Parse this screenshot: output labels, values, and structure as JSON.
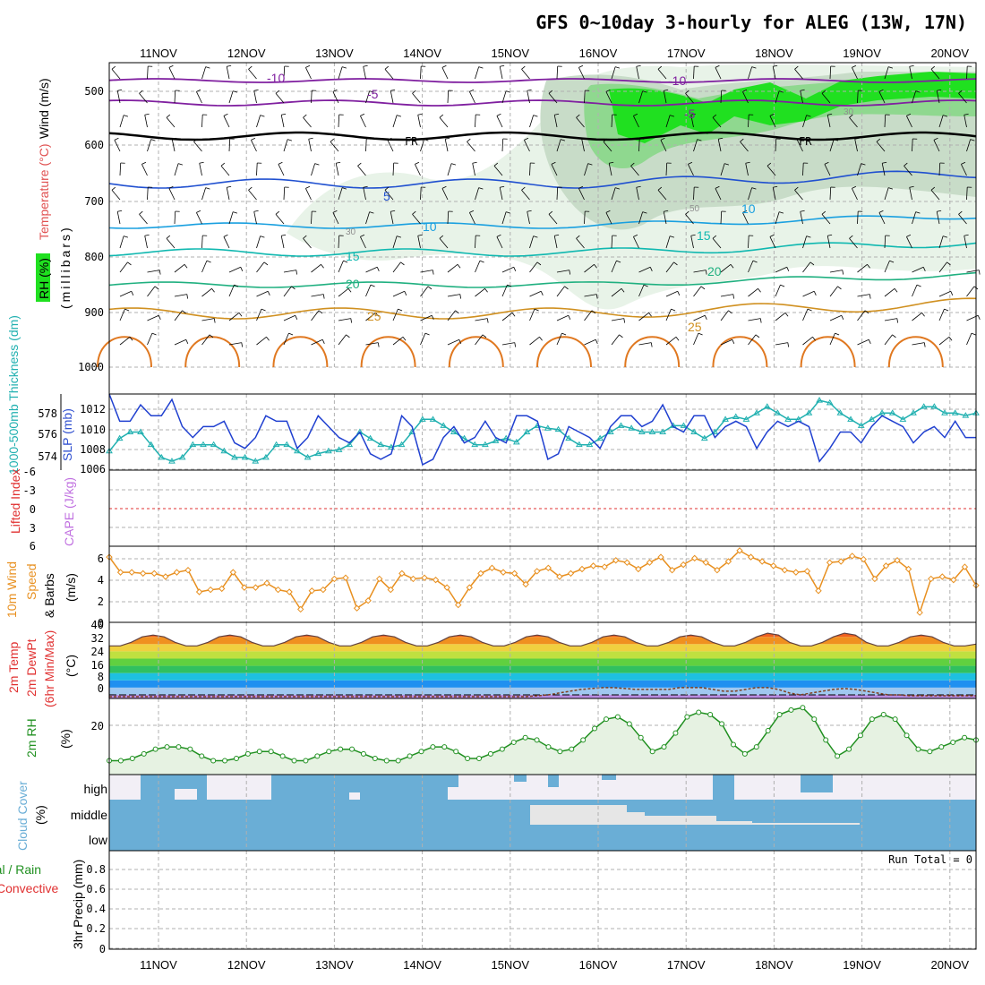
{
  "title": "GFS 0~10day 3-hourly for ALEG (13W, 17N)",
  "dates": [
    "11NOV",
    "12NOV",
    "13NOV",
    "14NOV",
    "15NOV",
    "16NOV",
    "17NOV",
    "18NOV",
    "19NOV",
    "20NOV"
  ],
  "colors": {
    "slp": "#2040d0",
    "thickness": "#20b0b0",
    "wind10": "#e89020",
    "rh2m": "#209020",
    "cloud": "#6aaed6",
    "lifted": "#e03030",
    "cape": "#c070e0",
    "rh_fill": "#00e000"
  },
  "panels": {
    "upper": {
      "label_wind": "Wind (m/s)",
      "label_temp": "Temperature (°C)",
      "label_rh": "RH (%)",
      "label_mb": "(millibars)",
      "yticks": [
        "500",
        "600",
        "700",
        "800",
        "900",
        "1000"
      ],
      "isotherm_labels": [
        "-10",
        "-5",
        "FR",
        "5",
        "10",
        "15",
        "20",
        "25"
      ],
      "rh_labels": [
        "30",
        "50",
        "30"
      ]
    },
    "slp": {
      "label_thick": "1000-500mb Thickness (dm)",
      "label_slp": "SLP (mb)",
      "left_ticks": [
        "578",
        "576",
        "574"
      ],
      "right_ticks": [
        "1012",
        "1010",
        "1008",
        "1006"
      ]
    },
    "li": {
      "label_li": "Lifted Index",
      "label_cape": "CAPE (J/kg)",
      "ticks": [
        "-6",
        "-3",
        "0",
        "3",
        "6"
      ]
    },
    "wind10": {
      "label1": "10m Wind",
      "label2": "Speed",
      "label3": "& Barbs",
      "units": "(m/s)",
      "ticks": [
        "6",
        "4",
        "2",
        "0"
      ]
    },
    "temp2m": {
      "label1": "2m Temp",
      "label2": "2m DewPt",
      "label3": "(6hr Min/Max)",
      "units": "(°C)",
      "ticks": [
        "40",
        "32",
        "24",
        "16",
        "8",
        "0"
      ]
    },
    "rh2m": {
      "label": "2m RH",
      "units": "(%)",
      "ticks": [
        "20"
      ]
    },
    "cloud": {
      "label": "Cloud Cover",
      "units": "(%)",
      "levels": [
        "high",
        "middle",
        "low"
      ]
    },
    "precip": {
      "label1": "Total / Rain",
      "label2": "Convective",
      "label3": "3hr Precip (mm)",
      "ticks": [
        "0.8",
        "0.6",
        "0.4",
        "0.2",
        "0"
      ],
      "run_total": "Run Total = 0"
    }
  },
  "chart_data": [
    {
      "type": "line",
      "name": "SLP (mb)",
      "ylim": [
        1006,
        1013
      ],
      "series": [
        {
          "name": "SLP",
          "values": [
            1013,
            1010.5,
            1010.5,
            1012,
            1011,
            1011,
            1012.5,
            1010,
            1009,
            1010,
            1010,
            1010.5,
            1008.5,
            1008,
            1009,
            1011,
            1010.5,
            1010.5,
            1008,
            1009,
            1011,
            1010,
            1009,
            1008.5,
            1009.5,
            1007.5,
            1007,
            1007.5,
            1011,
            1010,
            1006.5,
            1007,
            1009,
            1010,
            1008.5,
            1009,
            1010.5,
            1009,
            1008.5,
            1011,
            1011,
            1010.5,
            1007,
            1007.5,
            1010,
            1009.5,
            1009,
            1008,
            1010,
            1011,
            1011,
            1010,
            1010.5,
            1012,
            1010,
            1009.5,
            1011,
            1011,
            1009,
            1010,
            1010.5,
            1010,
            1008,
            1009.5,
            1010.5,
            1010,
            1010.5,
            1010,
            1006.8,
            1008,
            1009.5,
            1009.5,
            1008.5,
            1010,
            1011,
            1010.5,
            1010,
            1008.5,
            1009.5,
            1010,
            1009,
            1010.5,
            1009,
            1009
          ]
        }
      ]
    },
    {
      "type": "line",
      "name": "1000-500mb Thickness (dm)",
      "ylim": [
        573,
        579
      ],
      "series": [
        {
          "name": "Thickness",
          "values": [
            574.5,
            575.5,
            576,
            576,
            575,
            574,
            573.7,
            574,
            575,
            575,
            575,
            574.5,
            574,
            574,
            573.7,
            574,
            575,
            575,
            574.5,
            574,
            574.3,
            574.5,
            574.6,
            575,
            576,
            575.5,
            575,
            574.8,
            575,
            576,
            577,
            577,
            576.5,
            576,
            575.5,
            575,
            575,
            575.3,
            575.5,
            575.2,
            576,
            576.5,
            576.3,
            576.2,
            575.5,
            575,
            575,
            575.5,
            576,
            576.5,
            576.3,
            576,
            576,
            576,
            576.5,
            576.5,
            576,
            575.5,
            576,
            577,
            577.2,
            577,
            577.5,
            578,
            577.5,
            577,
            577,
            577.5,
            578.5,
            578.3,
            577.5,
            577,
            576.5,
            577,
            577.5,
            577.5,
            577,
            577.5,
            578,
            578,
            577.5,
            577.5,
            577.3,
            577.5
          ]
        }
      ]
    },
    {
      "type": "line",
      "name": "10m Wind Speed (m/s)",
      "ylim": [
        0,
        7
      ],
      "series": [
        {
          "name": "10m Wind Speed",
          "values": [
            6,
            4.6,
            4.6,
            4.5,
            4.5,
            4.2,
            4.6,
            4.8,
            2.8,
            3,
            3.1,
            4.6,
            3.2,
            3.2,
            3.6,
            3,
            2.8,
            1.2,
            2.9,
            3,
            4,
            4.1,
            1.3,
            2,
            4,
            3,
            4.5,
            4,
            4.1,
            3.9,
            3.2,
            1.6,
            3.2,
            4.5,
            5,
            4.6,
            4.5,
            3.5,
            4.7,
            5,
            4.2,
            4.5,
            4.9,
            5.2,
            5.1,
            5.7,
            5.5,
            4.9,
            5.5,
            6,
            4.8,
            5.3,
            5.9,
            5.5,
            4.8,
            5.6,
            6.6,
            6,
            5.6,
            5.2,
            4.8,
            4.6,
            4.7,
            2.9,
            5.5,
            5.6,
            6.1,
            5.8,
            4,
            5.2,
            5.7,
            4.9,
            0.9,
            4,
            4.2,
            3.9,
            5.1,
            3.4
          ]
        }
      ]
    },
    {
      "type": "area",
      "name": "2m Temp (°C)",
      "ylim": [
        -2,
        40
      ],
      "series": [
        {
          "name": "2m Temp",
          "values": [
            27,
            27,
            29,
            32,
            33,
            32,
            29,
            27,
            27,
            29,
            32,
            33,
            32,
            29,
            27,
            27,
            29,
            32,
            33,
            32,
            29,
            27,
            27,
            29,
            32,
            33,
            32,
            29,
            27,
            27,
            29,
            32,
            33,
            32,
            29,
            27,
            27,
            29,
            32,
            33,
            32,
            29,
            27,
            27,
            29,
            32,
            33,
            32,
            29,
            27,
            27,
            29,
            32,
            33,
            32,
            29,
            27,
            27,
            29,
            32,
            34,
            33,
            29,
            27,
            27,
            29,
            32,
            34,
            33,
            29,
            27,
            27,
            29,
            32,
            33,
            32,
            29,
            27,
            27,
            28
          ]
        },
        {
          "name": "2m DewPt",
          "values": [
            -1,
            -1,
            -1,
            -1,
            -1,
            -1,
            -1,
            -1,
            -1,
            -1,
            -1,
            -1,
            -1,
            -1,
            -1,
            -1,
            -1,
            -1,
            -1,
            -1,
            -1,
            -1,
            -1,
            -1,
            -1,
            -1,
            -1,
            -1,
            -1,
            -1,
            -1,
            -1,
            -1,
            -1,
            -1,
            -1,
            -1,
            -1,
            -1,
            -0.5,
            0,
            1,
            2,
            3,
            3.5,
            4,
            4,
            3.5,
            3,
            3,
            3,
            3,
            4,
            4,
            4,
            3,
            2,
            2,
            3,
            4,
            4,
            3,
            1,
            0,
            1,
            2,
            3,
            3.5,
            3,
            2,
            1,
            0,
            0,
            -0.5,
            -0.5,
            -0.5,
            -0.5,
            -0.5,
            -0.5,
            -0.5
          ]
        }
      ]
    },
    {
      "type": "line",
      "name": "2m RH (%)",
      "ylim": [
        0,
        33
      ],
      "series": [
        {
          "name": "2m RH",
          "values": [
            6,
            6,
            7,
            9,
            11,
            12,
            12,
            11,
            8,
            6,
            6,
            7,
            9,
            10,
            10,
            8,
            6,
            6,
            8,
            10,
            11,
            11,
            9,
            7,
            6,
            6,
            8,
            10,
            12,
            12,
            10,
            7,
            7,
            9,
            11,
            14,
            16,
            15,
            12,
            10,
            11,
            15,
            20,
            24,
            25,
            22,
            16,
            10,
            12,
            18,
            25,
            27,
            26,
            22,
            13,
            9,
            12,
            19,
            26,
            28,
            29,
            24,
            15,
            8,
            11,
            17,
            24,
            26,
            24,
            17,
            11,
            10,
            12,
            14,
            16,
            15
          ]
        }
      ]
    },
    {
      "type": "bar",
      "name": "3hr Precip (mm)",
      "ylim": [
        0,
        1
      ],
      "categories": [
        "11NOV",
        "12NOV",
        "13NOV",
        "14NOV",
        "15NOV",
        "16NOV",
        "17NOV",
        "18NOV",
        "19NOV",
        "20NOV"
      ],
      "series": [
        {
          "name": "Total / Rain",
          "values": [
            0,
            0,
            0,
            0,
            0,
            0,
            0,
            0,
            0,
            0
          ]
        }
      ]
    }
  ]
}
